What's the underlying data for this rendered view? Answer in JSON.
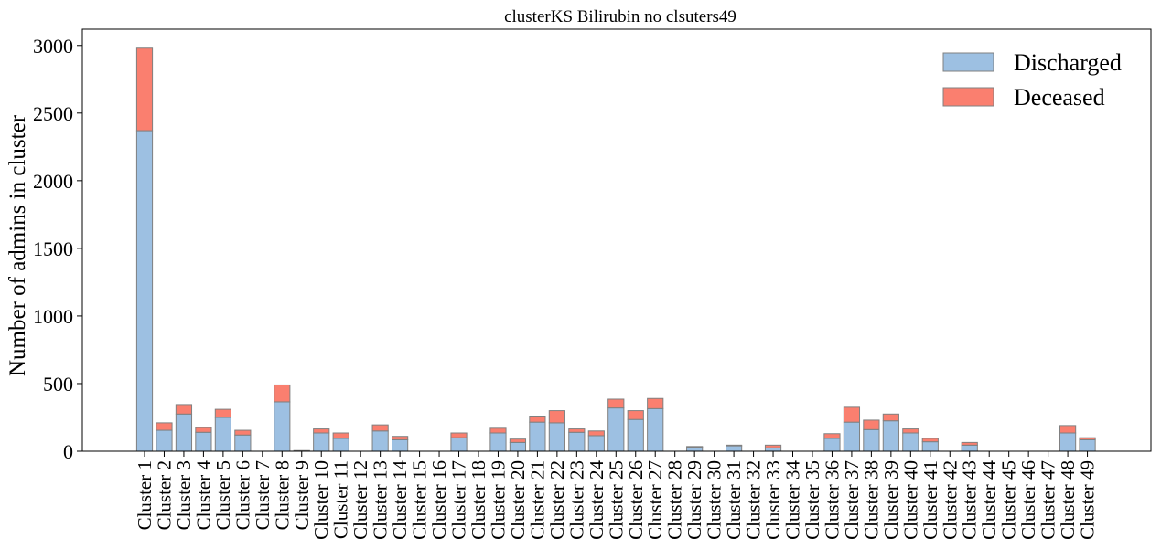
{
  "chart_data": {
    "type": "bar",
    "stacked": true,
    "title": "clusterKS Bilirubin no clsuters49",
    "xlabel": "",
    "ylabel": "Number of admins in cluster",
    "ylim": [
      0,
      3120
    ],
    "yticks": [
      0,
      500,
      1000,
      1500,
      2000,
      2500,
      3000
    ],
    "legend_position": "top-right",
    "grid": false,
    "categories": [
      "Cluster 1",
      "Cluster 2",
      "Cluster 3",
      "Cluster 4",
      "Cluster 5",
      "Cluster 6",
      "Cluster 7",
      "Cluster 8",
      "Cluster 9",
      "Cluster 10",
      "Cluster 11",
      "Cluster 12",
      "Cluster 13",
      "Cluster 14",
      "Cluster 15",
      "Cluster 16",
      "Cluster 17",
      "Cluster 18",
      "Cluster 19",
      "Cluster 20",
      "Cluster 21",
      "Cluster 22",
      "Cluster 23",
      "Cluster 24",
      "Cluster 25",
      "Cluster 26",
      "Cluster 27",
      "Cluster 28",
      "Cluster 29",
      "Cluster 30",
      "Cluster 31",
      "Cluster 32",
      "Cluster 33",
      "Cluster 34",
      "Cluster 35",
      "Cluster 36",
      "Cluster 37",
      "Cluster 38",
      "Cluster 39",
      "Cluster 40",
      "Cluster 41",
      "Cluster 42",
      "Cluster 43",
      "Cluster 44",
      "Cluster 45",
      "Cluster 46",
      "Cluster 47",
      "Cluster 48",
      "Cluster 49"
    ],
    "series": [
      {
        "name": "Discharged",
        "color": "#9dc0e2",
        "values": [
          2370,
          155,
          275,
          140,
          250,
          120,
          0,
          365,
          5,
          135,
          95,
          0,
          150,
          85,
          0,
          0,
          100,
          0,
          135,
          65,
          215,
          210,
          140,
          115,
          320,
          235,
          315,
          0,
          30,
          0,
          40,
          0,
          25,
          0,
          0,
          95,
          215,
          160,
          225,
          135,
          70,
          0,
          45,
          0,
          0,
          0,
          0,
          135,
          85
        ]
      },
      {
        "name": "Deceased",
        "color": "#fa7f6f",
        "values": [
          610,
          55,
          70,
          35,
          60,
          35,
          0,
          125,
          0,
          30,
          40,
          0,
          45,
          25,
          0,
          0,
          35,
          0,
          35,
          25,
          45,
          90,
          25,
          35,
          65,
          65,
          75,
          0,
          5,
          0,
          5,
          0,
          20,
          0,
          0,
          35,
          110,
          70,
          50,
          30,
          25,
          0,
          20,
          0,
          0,
          0,
          0,
          55,
          15
        ]
      }
    ]
  }
}
